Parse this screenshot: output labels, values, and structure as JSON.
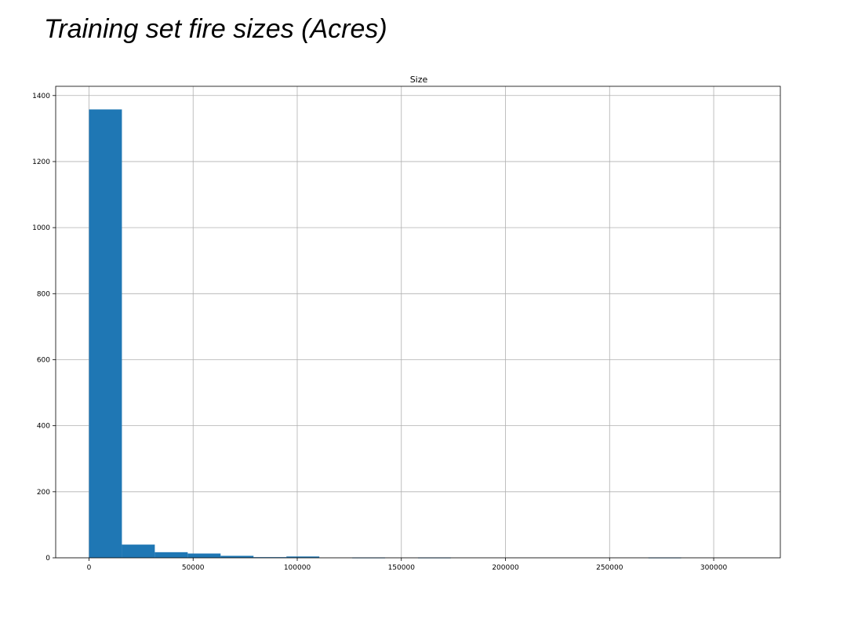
{
  "slide": {
    "title": "Training set fire sizes (Acres)"
  },
  "colors": {
    "bar": "#1f77b4",
    "grid": "#b0b0b0",
    "axis": "#000000",
    "background": "#ffffff"
  },
  "chart_data": {
    "type": "bar",
    "title": "Size",
    "xlabel": "",
    "ylabel": "",
    "xlim": [
      -16000,
      332000
    ],
    "ylim": [
      0,
      1428
    ],
    "grid": true,
    "legend": "none",
    "xticks": [
      0,
      50000,
      100000,
      150000,
      200000,
      250000,
      300000
    ],
    "yticks": [
      0,
      200,
      400,
      600,
      800,
      1000,
      1200,
      1400
    ],
    "bin_edges": [
      0,
      15800,
      31600,
      47400,
      63200,
      79000,
      94800,
      110600,
      126400,
      142200,
      158000,
      173800,
      189600,
      205400,
      221200,
      237000,
      252800,
      268600,
      284400,
      300200,
      316000
    ],
    "counts": [
      1358,
      40,
      17,
      13,
      6,
      2,
      4,
      0,
      1,
      0,
      1,
      0,
      0,
      0,
      0,
      0,
      0,
      1,
      0,
      0
    ]
  }
}
